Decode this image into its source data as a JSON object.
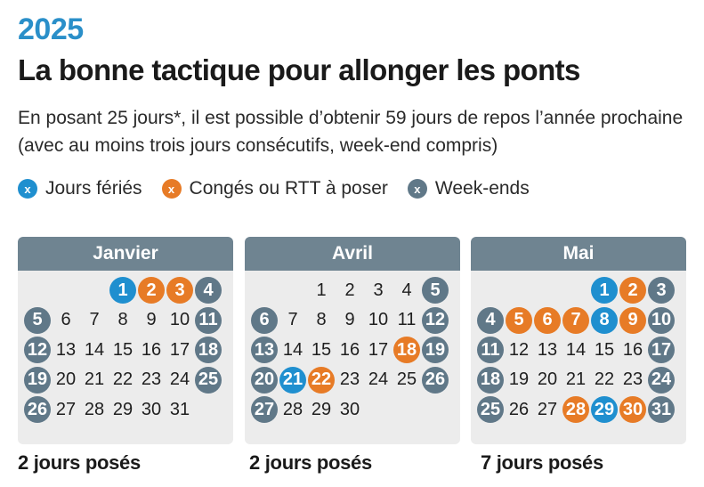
{
  "year": "2025",
  "title": "La bonne tactique pour allonger les ponts",
  "subtitle": "En posant 25 jours*, il est possible d’obtenir 59 jours de repos l’année prochaine (avec au moins trois jours consécutifs, week-end compris)",
  "legend": [
    {
      "symbol": "x",
      "label": "Jours fériés",
      "color": "#1f8fcf"
    },
    {
      "symbol": "x",
      "label": "Congés ou RTT à poser",
      "color": "#e77b26"
    },
    {
      "symbol": "x",
      "label": "Week-ends",
      "color": "#607888"
    }
  ],
  "colors": {
    "ferie": "#1f8fcf",
    "conge": "#e77b26",
    "weekend": "#607888",
    "header": "#6f8491",
    "year": "#2a8fc9"
  },
  "months": [
    {
      "name": "Janvier",
      "start_weekday": 3,
      "days": 31,
      "highlights": {
        "1": "ferie",
        "2": "conge",
        "3": "conge",
        "4": "weekend",
        "5": "weekend",
        "11": "weekend",
        "12": "weekend",
        "18": "weekend",
        "19": "weekend",
        "25": "weekend",
        "26": "weekend"
      },
      "footer": "2 jours posés"
    },
    {
      "name": "Avril",
      "start_weekday": 2,
      "days": 30,
      "highlights": {
        "5": "weekend",
        "6": "weekend",
        "12": "weekend",
        "13": "weekend",
        "18": "conge",
        "19": "weekend",
        "20": "weekend",
        "21": "ferie",
        "22": "conge",
        "26": "weekend",
        "27": "weekend"
      },
      "footer": "2 jours posés"
    },
    {
      "name": "Mai",
      "start_weekday": 4,
      "days": 31,
      "highlights": {
        "1": "ferie",
        "2": "conge",
        "3": "weekend",
        "4": "weekend",
        "5": "conge",
        "6": "conge",
        "7": "conge",
        "8": "ferie",
        "9": "conge",
        "10": "weekend",
        "11": "weekend",
        "17": "weekend",
        "18": "weekend",
        "24": "weekend",
        "25": "weekend",
        "28": "conge",
        "29": "ferie",
        "30": "conge",
        "31": "weekend"
      },
      "footer": "7 jours posés"
    }
  ]
}
